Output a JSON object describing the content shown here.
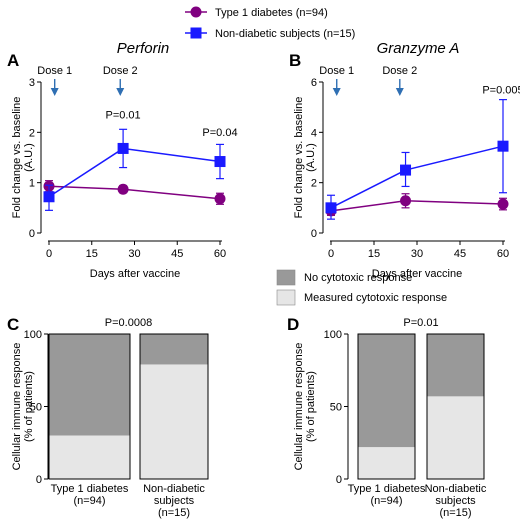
{
  "legend_top": {
    "entries": [
      {
        "label": "Type 1 diabetes (n=94)",
        "marker": "circle",
        "color": "#800080"
      },
      {
        "label": "Non-diabetic subjects (n=15)",
        "marker": "square",
        "color": "#1a1aff"
      }
    ]
  },
  "legend_bottom": {
    "entries": [
      {
        "label": "No cytotoxic response",
        "color": "#999999"
      },
      {
        "label": "Measured cytotoxic response",
        "color": "#e6e6e6"
      }
    ]
  },
  "chart_data": [
    {
      "panel": "A",
      "type": "line",
      "title": "Perforin",
      "xlabel": "Days after vaccine",
      "ylabel": "Fold change vs. baseline (A.U.)",
      "ylabel_lines": [
        "Fold change vs. baseline",
        "(A.U.)"
      ],
      "xlim": [
        0,
        60
      ],
      "ylim": [
        0,
        3
      ],
      "xticks": [
        0,
        15,
        30,
        45,
        60
      ],
      "yticks": [
        0,
        1,
        2,
        3
      ],
      "doses": [
        {
          "label": "Dose 1",
          "x": 2
        },
        {
          "label": "Dose 2",
          "x": 25
        }
      ],
      "annotations": [
        {
          "text": "P=0.01",
          "x": 26,
          "y": 2.27
        },
        {
          "text": "P=0.04",
          "x": 60,
          "y": 1.93
        }
      ],
      "series": [
        {
          "name": "Type 1 diabetes (n=94)",
          "marker": "circle",
          "color": "#800080",
          "x": [
            0,
            26,
            60
          ],
          "y": [
            0.93,
            0.87,
            0.68
          ],
          "err_low": [
            0.82,
            0.8,
            0.57
          ],
          "err_high": [
            1.04,
            0.94,
            0.79
          ]
        },
        {
          "name": "Non-diabetic subjects (n=15)",
          "marker": "square",
          "color": "#1a1aff",
          "x": [
            0,
            26,
            60
          ],
          "y": [
            0.72,
            1.68,
            1.42
          ],
          "err_low": [
            0.45,
            1.3,
            1.08
          ],
          "err_high": [
            0.95,
            2.06,
            1.76
          ]
        }
      ]
    },
    {
      "panel": "B",
      "type": "line",
      "title": "Granzyme A",
      "xlabel": "Days after vaccine",
      "ylabel": "Fold change vs. baseline (A.U.)",
      "ylabel_lines": [
        "Fold change vs. baseline",
        "(A.U.)"
      ],
      "xlim": [
        0,
        60
      ],
      "ylim": [
        0,
        6
      ],
      "xticks": [
        0,
        15,
        30,
        45,
        60
      ],
      "yticks": [
        0,
        2,
        4,
        6
      ],
      "doses": [
        {
          "label": "Dose 1",
          "x": 2
        },
        {
          "label": "Dose 2",
          "x": 24
        }
      ],
      "annotations": [
        {
          "text": "P=0.005",
          "x": 60,
          "y": 5.55
        }
      ],
      "series": [
        {
          "name": "Type 1 diabetes (n=94)",
          "marker": "circle",
          "color": "#800080",
          "x": [
            0,
            26,
            60
          ],
          "y": [
            0.88,
            1.28,
            1.15
          ],
          "err_low": [
            0.7,
            1.0,
            0.92
          ],
          "err_high": [
            1.06,
            1.56,
            1.38
          ]
        },
        {
          "name": "Non-diabetic subjects (n=15)",
          "marker": "square",
          "color": "#1a1aff",
          "x": [
            0,
            26,
            60
          ],
          "y": [
            1.0,
            2.5,
            3.45
          ],
          "err_low": [
            0.55,
            1.85,
            1.6
          ],
          "err_high": [
            1.5,
            3.2,
            5.3
          ]
        }
      ]
    },
    {
      "panel": "C",
      "type": "bar",
      "stacked": true,
      "title": "P=0.0008",
      "ylabel": "Cellular immune response (% of patients)",
      "ylabel_lines": [
        "Cellular immune response",
        "(% of patients)"
      ],
      "ylim": [
        0,
        100
      ],
      "yticks": [
        0,
        50,
        100
      ],
      "categories": [
        "Type 1 diabetes (n=94)",
        "Non-diabetic subjects (n=15)"
      ],
      "category_lines": [
        [
          "Type 1 diabetes",
          "(n=94)"
        ],
        [
          "Non-diabetic",
          "subjects",
          "(n=15)"
        ]
      ],
      "series": [
        {
          "name": "Measured cytotoxic response",
          "color": "#e6e6e6",
          "values": [
            30,
            79
          ]
        },
        {
          "name": "No cytotoxic response",
          "color": "#999999",
          "values": [
            70,
            21
          ]
        }
      ]
    },
    {
      "panel": "D",
      "type": "bar",
      "stacked": true,
      "title": "P=0.01",
      "ylabel": "Cellular immune response (% of patients)",
      "ylabel_lines": [
        "Cellular immune response",
        "(% of patients)"
      ],
      "ylim": [
        0,
        100
      ],
      "yticks": [
        0,
        50,
        100
      ],
      "categories": [
        "Type 1 diabetes (n=94)",
        "Non-diabetic subjects (n=15)"
      ],
      "category_lines": [
        [
          "Type 1 diabetes",
          "(n=94)"
        ],
        [
          "Non-diabetic",
          "subjects",
          "(n=15)"
        ]
      ],
      "series": [
        {
          "name": "Measured cytotoxic response",
          "color": "#e6e6e6",
          "values": [
            22,
            57
          ]
        },
        {
          "name": "No cytotoxic response",
          "color": "#999999",
          "values": [
            78,
            43
          ]
        }
      ]
    }
  ]
}
